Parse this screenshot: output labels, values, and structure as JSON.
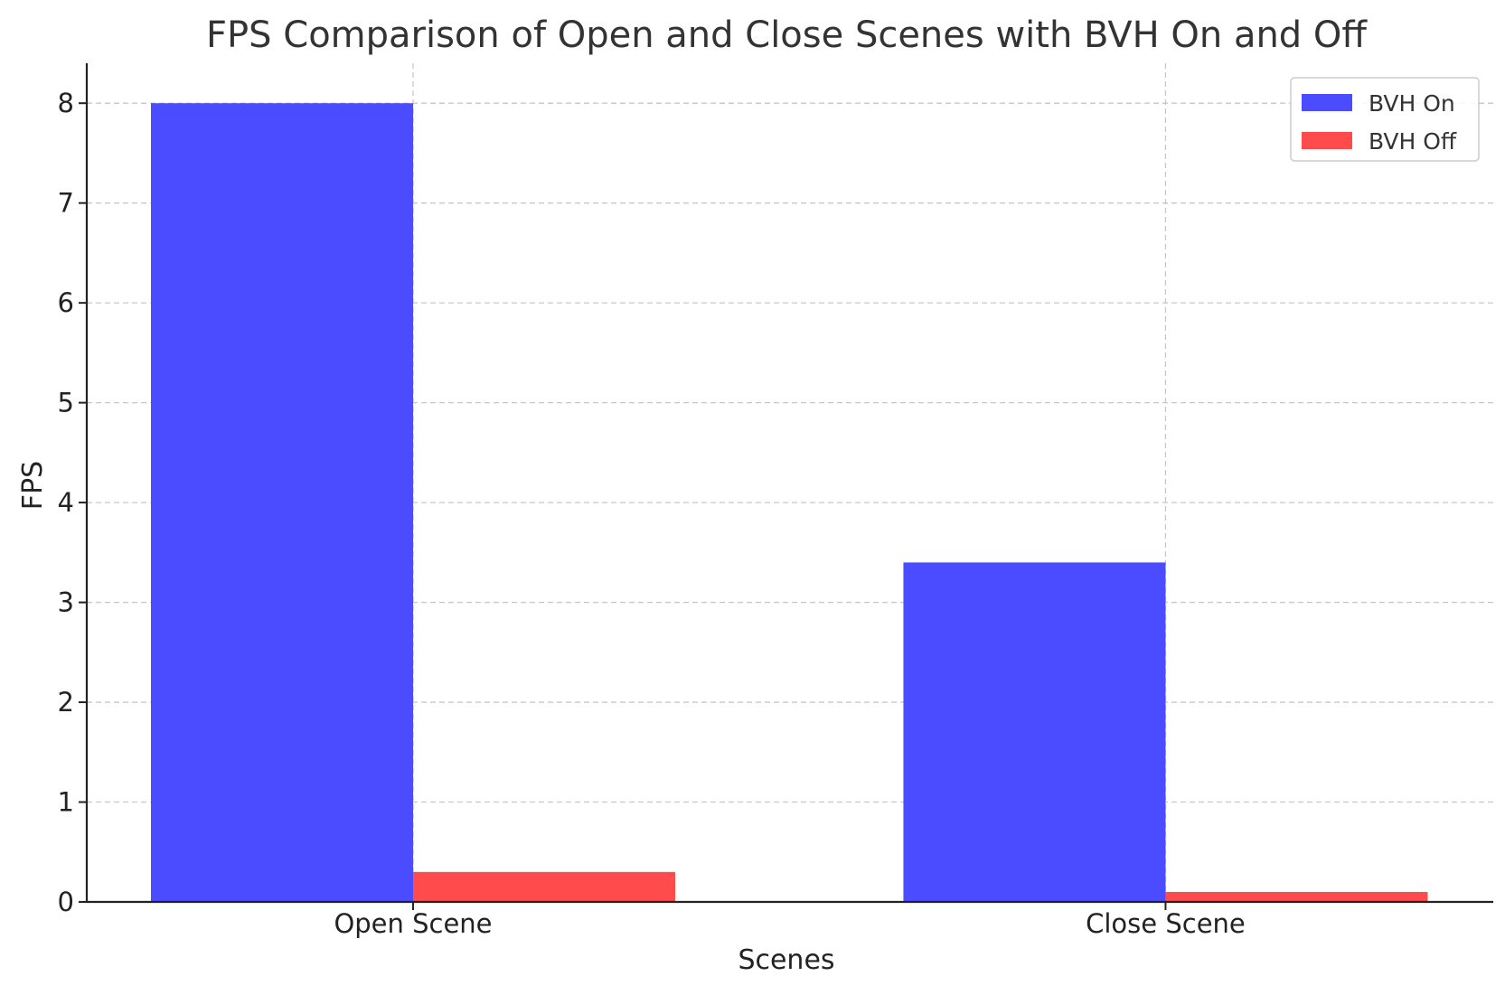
{
  "chart_data": {
    "type": "bar",
    "title": "FPS Comparison of Open and Close Scenes with BVH On and Off",
    "xlabel": "Scenes",
    "ylabel": "FPS",
    "categories": [
      "Open Scene",
      "Close Scene"
    ],
    "series": [
      {
        "name": "BVH On",
        "values": [
          8.0,
          3.4
        ],
        "color": "#4b4bff"
      },
      {
        "name": "BVH Off",
        "values": [
          0.3,
          0.1
        ],
        "color": "#ff4b4b"
      }
    ],
    "ylim": [
      0,
      8.4
    ],
    "yticks": [
      0,
      1,
      2,
      3,
      4,
      5,
      6,
      7,
      8
    ],
    "grid": true,
    "legend_position": "top-right"
  }
}
